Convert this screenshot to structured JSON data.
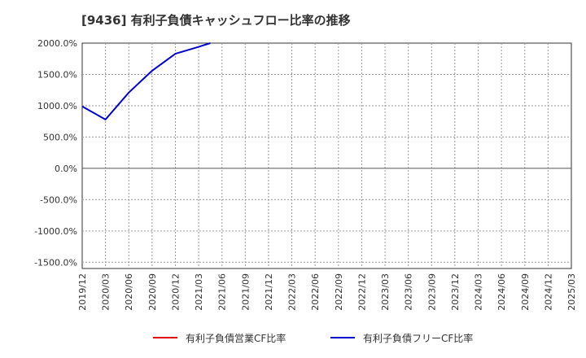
{
  "chart_data": {
    "type": "line",
    "title": "[9436]  有利子負債キャッシュフロー比率の推移",
    "xlabel": "",
    "ylabel": "",
    "ylim": [
      -1600,
      2000
    ],
    "y_ticks": [
      2000,
      1500,
      1000,
      500,
      0,
      -500,
      -1000,
      -1500
    ],
    "y_tick_labels": [
      "2000.0%",
      "1500.0%",
      "1000.0%",
      "500.0%",
      "0.0%",
      "-500.0%",
      "-1000.0%",
      "-1500.0%"
    ],
    "x_tick_labels": [
      "2019/12",
      "2020/03",
      "2020/06",
      "2020/09",
      "2020/12",
      "2021/03",
      "2021/06",
      "2021/09",
      "2021/12",
      "2022/03",
      "2022/06",
      "2022/09",
      "2022/12",
      "2023/03",
      "2023/06",
      "2023/09",
      "2023/12",
      "2024/03",
      "2024/06",
      "2024/09",
      "2024/12",
      "2025/03"
    ],
    "grid": true,
    "legend_position": "bottom",
    "series": [
      {
        "name": "有利子負債営業CF比率",
        "color": "#e00000",
        "x_index": [],
        "values": []
      },
      {
        "name": "有利子負債フリーCF比率",
        "color": "#0000cc",
        "x_index": [
          0,
          1,
          2,
          3,
          4,
          5,
          5.5
        ],
        "values": [
          990,
          780,
          1210,
          1560,
          1830,
          1940,
          2000
        ]
      }
    ]
  }
}
